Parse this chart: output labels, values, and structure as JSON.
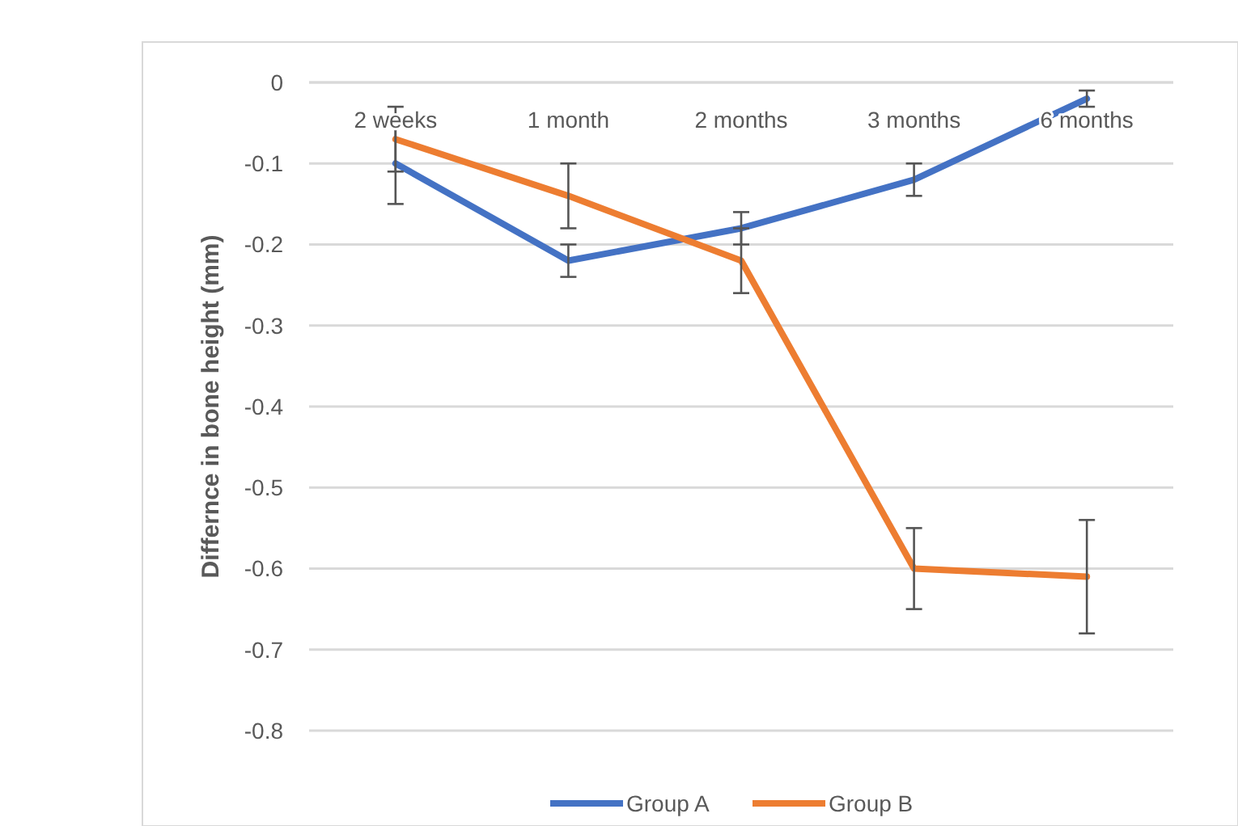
{
  "chart_data": {
    "type": "line",
    "ylabel": "Differnce in bone height (mm)",
    "categories": [
      "2 weeks",
      "1 month",
      "2 months",
      "3 months",
      "6 months"
    ],
    "series": [
      {
        "name": "Group A",
        "color": "#4472c4",
        "values": [
          -0.1,
          -0.22,
          -0.18,
          -0.12,
          -0.02
        ],
        "errors": [
          0.05,
          0.02,
          0.02,
          0.02,
          0.01
        ]
      },
      {
        "name": "Group B",
        "color": "#ed7d31",
        "values": [
          -0.07,
          -0.14,
          -0.22,
          -0.6,
          -0.61
        ],
        "errors": [
          0.04,
          0.04,
          0.04,
          0.05,
          0.07
        ]
      }
    ],
    "ylim": [
      -0.8,
      0
    ],
    "yticks": [
      0,
      -0.1,
      -0.2,
      -0.3,
      -0.4,
      -0.5,
      -0.6,
      -0.7,
      -0.8
    ],
    "grid": "y",
    "legend": "bottom",
    "marker": "none",
    "line_style": "solid"
  }
}
